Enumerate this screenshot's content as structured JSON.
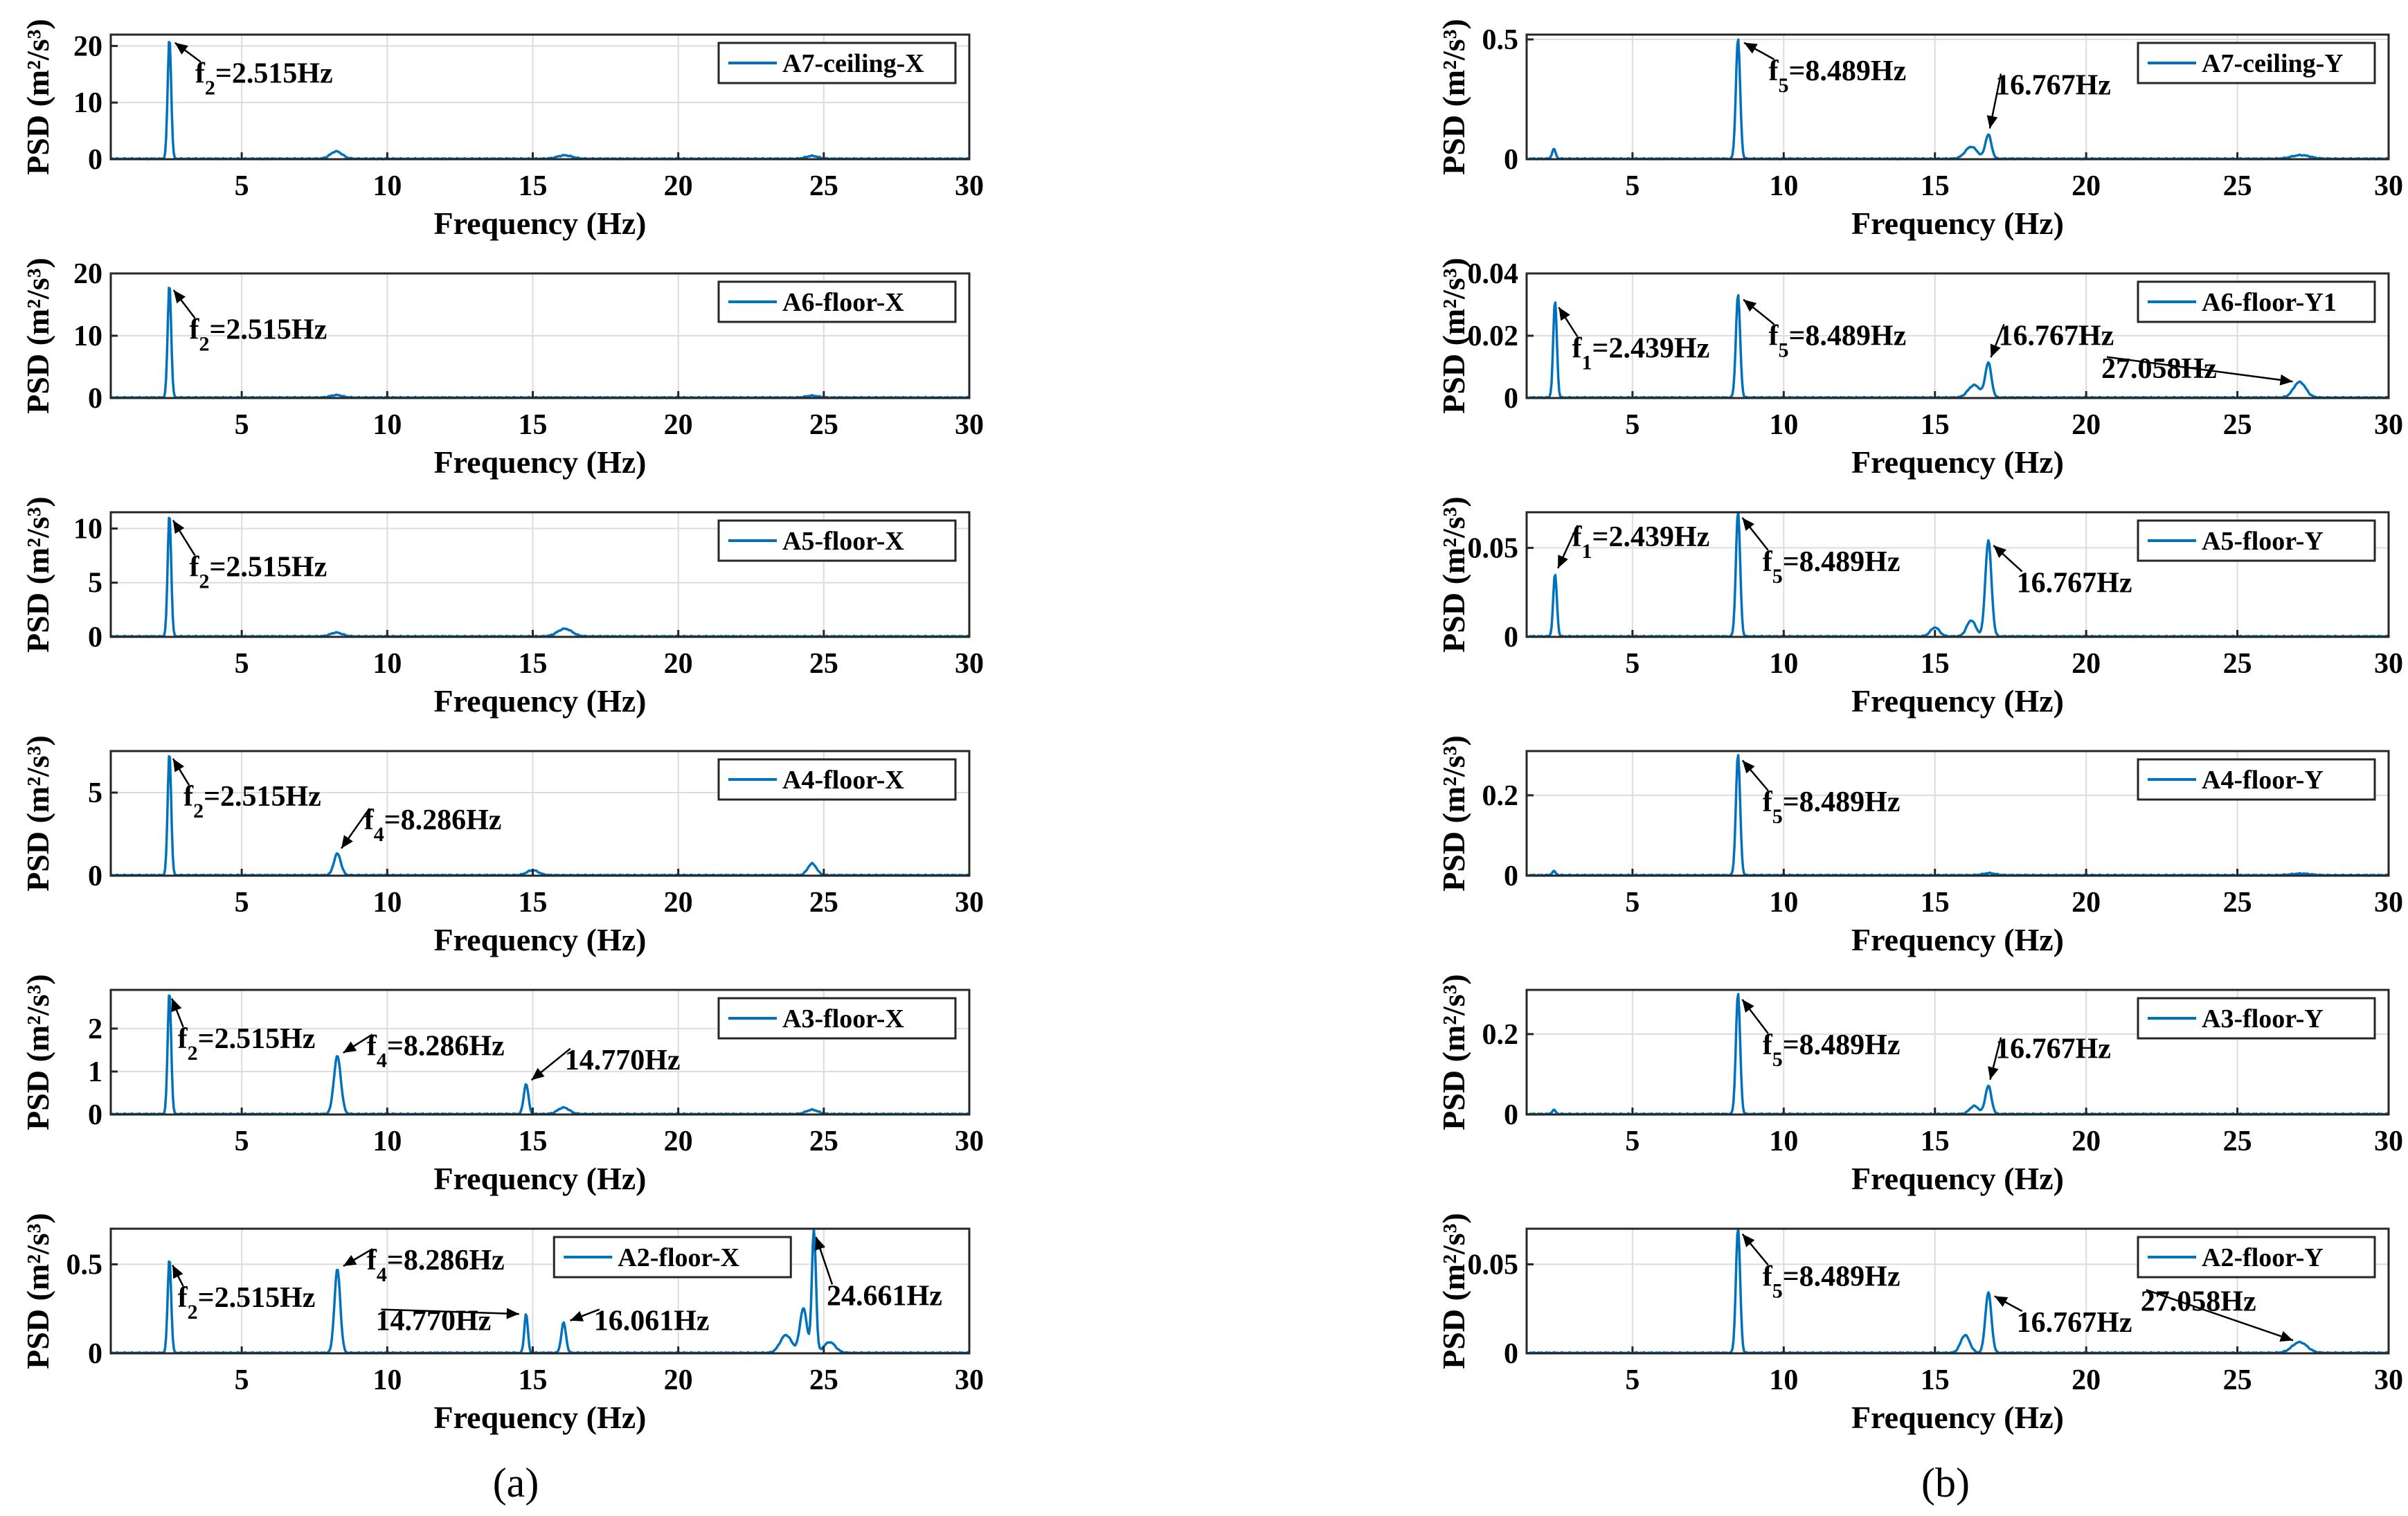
{
  "figure": {
    "caption_a": "(a)",
    "caption_b": "(b)"
  },
  "chart_data": [
    {
      "type": "line",
      "column": "a",
      "legend": "A7-ceiling-X",
      "xlabel": "Frequency (Hz)",
      "ylabel": "PSD (m²/s³)",
      "xlim": [
        0.5,
        30
      ],
      "ylim": [
        0,
        22
      ],
      "xticks": [
        5,
        10,
        15,
        20,
        25,
        30
      ],
      "yticks": [
        0,
        10,
        20
      ],
      "grid": true,
      "legend_position": "top-right",
      "peaks": [
        {
          "f": 2.515,
          "psd": 21.3,
          "w": 0.06
        },
        {
          "f": 8.25,
          "psd": 1.3,
          "w": 0.2
        },
        {
          "f": 16.1,
          "psd": 0.6,
          "w": 0.25
        },
        {
          "f": 24.6,
          "psd": 0.5,
          "w": 0.2
        }
      ],
      "annotations": [
        {
          "sym": "f",
          "sub": "2",
          "text": "=2.515Hz",
          "f": 2.515,
          "psd": 21.3,
          "label_f": 3.4,
          "label_psd": 13.5
        }
      ]
    },
    {
      "type": "line",
      "column": "a",
      "legend": "A6-floor-X",
      "xlabel": "Frequency (Hz)",
      "ylabel": "PSD (m²/s³)",
      "xlim": [
        0.5,
        30
      ],
      "ylim": [
        0,
        20
      ],
      "xticks": [
        5,
        10,
        15,
        20,
        25,
        30
      ],
      "yticks": [
        0,
        10,
        20
      ],
      "grid": true,
      "legend_position": "top-right",
      "peaks": [
        {
          "f": 2.515,
          "psd": 18.2,
          "w": 0.06
        },
        {
          "f": 8.25,
          "psd": 0.4,
          "w": 0.2
        },
        {
          "f": 24.6,
          "psd": 0.3,
          "w": 0.2
        }
      ],
      "annotations": [
        {
          "sym": "f",
          "sub": "2",
          "text": "=2.515Hz",
          "f": 2.515,
          "psd": 18.2,
          "label_f": 3.2,
          "label_psd": 9.5
        }
      ]
    },
    {
      "type": "line",
      "column": "a",
      "legend": "A5-floor-X",
      "xlabel": "Frequency (Hz)",
      "ylabel": "PSD (m²/s³)",
      "xlim": [
        0.5,
        30
      ],
      "ylim": [
        0,
        11.5
      ],
      "xticks": [
        5,
        10,
        15,
        20,
        25,
        30
      ],
      "yticks": [
        0,
        5,
        10
      ],
      "grid": true,
      "legend_position": "top-right",
      "peaks": [
        {
          "f": 2.515,
          "psd": 11.3,
          "w": 0.06
        },
        {
          "f": 8.25,
          "psd": 0.35,
          "w": 0.2
        },
        {
          "f": 16.1,
          "psd": 0.7,
          "w": 0.25
        }
      ],
      "annotations": [
        {
          "sym": "f",
          "sub": "2",
          "text": "=2.515Hz",
          "f": 2.515,
          "psd": 11.3,
          "label_f": 3.2,
          "label_psd": 5.6
        }
      ]
    },
    {
      "type": "line",
      "column": "a",
      "legend": "A4-floor-X",
      "xlabel": "Frequency (Hz)",
      "ylabel": "PSD (m²/s³)",
      "xlim": [
        0.5,
        30
      ],
      "ylim": [
        0,
        7.5
      ],
      "xticks": [
        5,
        10,
        15,
        20,
        25,
        30
      ],
      "yticks": [
        0,
        5
      ],
      "grid": true,
      "legend_position": "top-right",
      "peaks": [
        {
          "f": 2.515,
          "psd": 7.4,
          "w": 0.06
        },
        {
          "f": 8.286,
          "psd": 1.3,
          "w": 0.12
        },
        {
          "f": 15.0,
          "psd": 0.3,
          "w": 0.2
        },
        {
          "f": 24.6,
          "psd": 0.7,
          "w": 0.15
        }
      ],
      "annotations": [
        {
          "sym": "f",
          "sub": "2",
          "text": "=2.515Hz",
          "f": 2.515,
          "psd": 7.4,
          "label_f": 3.0,
          "label_psd": 4.2
        },
        {
          "sym": "f",
          "sub": "4",
          "text": "=8.286Hz",
          "f": 8.286,
          "psd": 1.3,
          "label_f": 9.2,
          "label_psd": 2.8
        }
      ]
    },
    {
      "type": "line",
      "column": "a",
      "legend": "A3-floor-X",
      "xlabel": "Frequency (Hz)",
      "ylabel": "PSD (m²/s³)",
      "xlim": [
        0.5,
        30
      ],
      "ylim": [
        0,
        2.9
      ],
      "xticks": [
        5,
        10,
        15,
        20,
        25,
        30
      ],
      "yticks": [
        0,
        1,
        2
      ],
      "grid": true,
      "legend_position": "top-right",
      "peaks": [
        {
          "f": 2.515,
          "psd": 2.85,
          "w": 0.06
        },
        {
          "f": 8.286,
          "psd": 1.35,
          "w": 0.12
        },
        {
          "f": 14.77,
          "psd": 0.7,
          "w": 0.08
        },
        {
          "f": 16.06,
          "psd": 0.15,
          "w": 0.2
        },
        {
          "f": 24.6,
          "psd": 0.1,
          "w": 0.2
        }
      ],
      "annotations": [
        {
          "sym": "f",
          "sub": "2",
          "text": "=2.515Hz",
          "f": 2.515,
          "psd": 2.85,
          "label_f": 2.8,
          "label_psd": 1.55
        },
        {
          "sym": "f",
          "sub": "4",
          "text": "=8.286Hz",
          "f": 8.286,
          "psd": 1.35,
          "label_f": 9.3,
          "label_psd": 1.38
        },
        {
          "sym": "",
          "sub": "",
          "text": "14.770Hz",
          "f": 14.77,
          "psd": 0.7,
          "label_f": 16.1,
          "label_psd": 1.05
        }
      ]
    },
    {
      "type": "line",
      "column": "a",
      "legend": "A2-floor-X",
      "xlabel": "Frequency (Hz)",
      "ylabel": "PSD (m²/s³)",
      "xlim": [
        0.5,
        30
      ],
      "ylim": [
        0,
        0.7
      ],
      "xticks": [
        5,
        10,
        15,
        20,
        25,
        30
      ],
      "yticks": [
        0,
        0.5
      ],
      "grid": true,
      "legend_position": "top-center",
      "peaks": [
        {
          "f": 2.515,
          "psd": 0.53,
          "w": 0.06
        },
        {
          "f": 8.286,
          "psd": 0.47,
          "w": 0.1
        },
        {
          "f": 14.77,
          "psd": 0.22,
          "w": 0.06
        },
        {
          "f": 16.061,
          "psd": 0.17,
          "w": 0.08
        },
        {
          "f": 23.7,
          "psd": 0.1,
          "w": 0.2
        },
        {
          "f": 24.3,
          "psd": 0.25,
          "w": 0.12
        },
        {
          "f": 24.661,
          "psd": 0.69,
          "w": 0.07
        },
        {
          "f": 25.2,
          "psd": 0.06,
          "w": 0.2
        }
      ],
      "annotations": [
        {
          "sym": "f",
          "sub": "2",
          "text": "=2.515Hz",
          "f": 2.515,
          "psd": 0.53,
          "label_f": 2.8,
          "label_psd": 0.26
        },
        {
          "sym": "f",
          "sub": "4",
          "text": "=8.286Hz",
          "f": 8.286,
          "psd": 0.47,
          "label_f": 9.3,
          "label_psd": 0.47
        },
        {
          "sym": "",
          "sub": "",
          "text": "14.770Hz",
          "f": 14.77,
          "psd": 0.22,
          "label_f": 9.6,
          "label_psd": 0.13
        },
        {
          "sym": "",
          "sub": "",
          "text": "16.061Hz",
          "f": 16.061,
          "psd": 0.17,
          "label_f": 17.1,
          "label_psd": 0.13
        },
        {
          "sym": "",
          "sub": "",
          "text": "24.661Hz",
          "f": 24.661,
          "psd": 0.69,
          "label_f": 25.1,
          "label_psd": 0.27
        }
      ]
    },
    {
      "type": "line",
      "column": "b",
      "legend": "A7-ceiling-Y",
      "xlabel": "Frequency (Hz)",
      "ylabel": "PSD (m²/s³)",
      "xlim": [
        1.5,
        30
      ],
      "ylim": [
        0,
        0.52
      ],
      "xticks": [
        5,
        10,
        15,
        20,
        25,
        30
      ],
      "yticks": [
        0,
        0.5
      ],
      "grid": true,
      "legend_position": "top-right",
      "peaks": [
        {
          "f": 2.4,
          "psd": 0.04,
          "w": 0.06
        },
        {
          "f": 8.489,
          "psd": 0.5,
          "w": 0.07
        },
        {
          "f": 16.2,
          "psd": 0.05,
          "w": 0.2
        },
        {
          "f": 16.767,
          "psd": 0.1,
          "w": 0.1
        },
        {
          "f": 27.1,
          "psd": 0.015,
          "w": 0.3
        }
      ],
      "annotations": [
        {
          "sym": "f",
          "sub": "5",
          "text": "=8.489Hz",
          "f": 8.489,
          "psd": 0.5,
          "label_f": 9.5,
          "label_psd": 0.33
        },
        {
          "sym": "",
          "sub": "",
          "text": "16.767Hz",
          "f": 16.767,
          "psd": 0.1,
          "label_f": 17.0,
          "label_psd": 0.27
        }
      ]
    },
    {
      "type": "line",
      "column": "b",
      "legend": "A6-floor-Y1",
      "xlabel": "Frequency (Hz)",
      "ylabel": "PSD (m²/s³)",
      "xlim": [
        1.5,
        30
      ],
      "ylim": [
        0,
        0.04
      ],
      "xticks": [
        5,
        10,
        15,
        20,
        25,
        30
      ],
      "yticks": [
        0,
        0.02,
        0.04
      ],
      "grid": true,
      "legend_position": "top-right",
      "peaks": [
        {
          "f": 2.439,
          "psd": 0.031,
          "w": 0.06
        },
        {
          "f": 8.489,
          "psd": 0.033,
          "w": 0.07
        },
        {
          "f": 16.3,
          "psd": 0.004,
          "w": 0.2
        },
        {
          "f": 16.767,
          "psd": 0.011,
          "w": 0.1
        },
        {
          "f": 27.058,
          "psd": 0.005,
          "w": 0.2
        }
      ],
      "annotations": [
        {
          "sym": "f",
          "sub": "1",
          "text": "=2.439Hz",
          "f": 2.439,
          "psd": 0.031,
          "label_f": 3.0,
          "label_psd": 0.013
        },
        {
          "sym": "f",
          "sub": "5",
          "text": "=8.489Hz",
          "f": 8.489,
          "psd": 0.033,
          "label_f": 9.5,
          "label_psd": 0.017
        },
        {
          "sym": "",
          "sub": "",
          "text": "16.767Hz",
          "f": 16.767,
          "psd": 0.011,
          "label_f": 17.1,
          "label_psd": 0.017
        },
        {
          "sym": "",
          "sub": "",
          "text": "27.058Hz",
          "f": 27.058,
          "psd": 0.005,
          "label_f": 20.5,
          "label_psd": 0.0065
        }
      ]
    },
    {
      "type": "line",
      "column": "b",
      "legend": "A5-floor-Y",
      "xlabel": "Frequency (Hz)",
      "ylabel": "PSD (m²/s³)",
      "xlim": [
        1.5,
        30
      ],
      "ylim": [
        0,
        0.07
      ],
      "xticks": [
        5,
        10,
        15,
        20,
        25,
        30
      ],
      "yticks": [
        0,
        0.05
      ],
      "grid": true,
      "legend_position": "top-right",
      "peaks": [
        {
          "f": 2.439,
          "psd": 0.035,
          "w": 0.06
        },
        {
          "f": 8.489,
          "psd": 0.07,
          "w": 0.07
        },
        {
          "f": 15.0,
          "psd": 0.005,
          "w": 0.15
        },
        {
          "f": 16.2,
          "psd": 0.009,
          "w": 0.15
        },
        {
          "f": 16.767,
          "psd": 0.054,
          "w": 0.1
        }
      ],
      "annotations": [
        {
          "sym": "f",
          "sub": "1",
          "text": "=2.439Hz",
          "f": 2.439,
          "psd": 0.035,
          "label_f": 3.0,
          "label_psd": 0.051
        },
        {
          "sym": "f",
          "sub": "5",
          "text": "=8.489Hz",
          "f": 8.489,
          "psd": 0.07,
          "label_f": 9.3,
          "label_psd": 0.037
        },
        {
          "sym": "",
          "sub": "",
          "text": "16.767Hz",
          "f": 16.767,
          "psd": 0.054,
          "label_f": 17.7,
          "label_psd": 0.025
        }
      ]
    },
    {
      "type": "line",
      "column": "b",
      "legend": "A4-floor-Y",
      "xlabel": "Frequency (Hz)",
      "ylabel": "PSD (m²/s³)",
      "xlim": [
        1.5,
        30
      ],
      "ylim": [
        0,
        0.31
      ],
      "xticks": [
        5,
        10,
        15,
        20,
        25,
        30
      ],
      "yticks": [
        0,
        0.2
      ],
      "grid": true,
      "legend_position": "top-right",
      "peaks": [
        {
          "f": 2.4,
          "psd": 0.01,
          "w": 0.06
        },
        {
          "f": 8.489,
          "psd": 0.3,
          "w": 0.07
        },
        {
          "f": 16.8,
          "psd": 0.005,
          "w": 0.2
        },
        {
          "f": 27.1,
          "psd": 0.004,
          "w": 0.3
        }
      ],
      "annotations": [
        {
          "sym": "f",
          "sub": "5",
          "text": "=8.489Hz",
          "f": 8.489,
          "psd": 0.3,
          "label_f": 9.3,
          "label_psd": 0.16
        }
      ]
    },
    {
      "type": "line",
      "column": "b",
      "legend": "A3-floor-Y",
      "xlabel": "Frequency (Hz)",
      "ylabel": "PSD (m²/s³)",
      "xlim": [
        1.5,
        30
      ],
      "ylim": [
        0,
        0.31
      ],
      "xticks": [
        5,
        10,
        15,
        20,
        25,
        30
      ],
      "yticks": [
        0,
        0.2
      ],
      "grid": true,
      "legend_position": "top-right",
      "peaks": [
        {
          "f": 2.4,
          "psd": 0.01,
          "w": 0.06
        },
        {
          "f": 8.489,
          "psd": 0.3,
          "w": 0.07
        },
        {
          "f": 16.3,
          "psd": 0.02,
          "w": 0.15
        },
        {
          "f": 16.767,
          "psd": 0.07,
          "w": 0.1
        }
      ],
      "annotations": [
        {
          "sym": "f",
          "sub": "5",
          "text": "=8.489Hz",
          "f": 8.489,
          "psd": 0.3,
          "label_f": 9.3,
          "label_psd": 0.15
        },
        {
          "sym": "",
          "sub": "",
          "text": "16.767Hz",
          "f": 16.767,
          "psd": 0.07,
          "label_f": 17.0,
          "label_psd": 0.14
        }
      ]
    },
    {
      "type": "line",
      "column": "b",
      "legend": "A2-floor-Y",
      "xlabel": "Frequency (Hz)",
      "ylabel": "PSD (m²/s³)",
      "xlim": [
        1.5,
        30
      ],
      "ylim": [
        0,
        0.07
      ],
      "xticks": [
        5,
        10,
        15,
        20,
        25,
        30
      ],
      "yticks": [
        0,
        0.05
      ],
      "grid": true,
      "legend_position": "top-right",
      "peaks": [
        {
          "f": 8.489,
          "psd": 0.07,
          "w": 0.07
        },
        {
          "f": 16.0,
          "psd": 0.01,
          "w": 0.15
        },
        {
          "f": 16.767,
          "psd": 0.034,
          "w": 0.1
        },
        {
          "f": 27.058,
          "psd": 0.006,
          "w": 0.25
        }
      ],
      "annotations": [
        {
          "sym": "f",
          "sub": "5",
          "text": "=8.489Hz",
          "f": 8.489,
          "psd": 0.07,
          "label_f": 9.3,
          "label_psd": 0.038
        },
        {
          "sym": "",
          "sub": "",
          "text": "16.767Hz",
          "f": 16.767,
          "psd": 0.034,
          "label_f": 17.7,
          "label_psd": 0.012
        },
        {
          "sym": "",
          "sub": "",
          "text": "27.058Hz",
          "f": 27.058,
          "psd": 0.006,
          "label_f": 21.8,
          "label_psd": 0.024
        }
      ]
    }
  ],
  "colors": {
    "series": "#0072BD",
    "axis": "#262626",
    "grid": "#dcdcdc"
  }
}
